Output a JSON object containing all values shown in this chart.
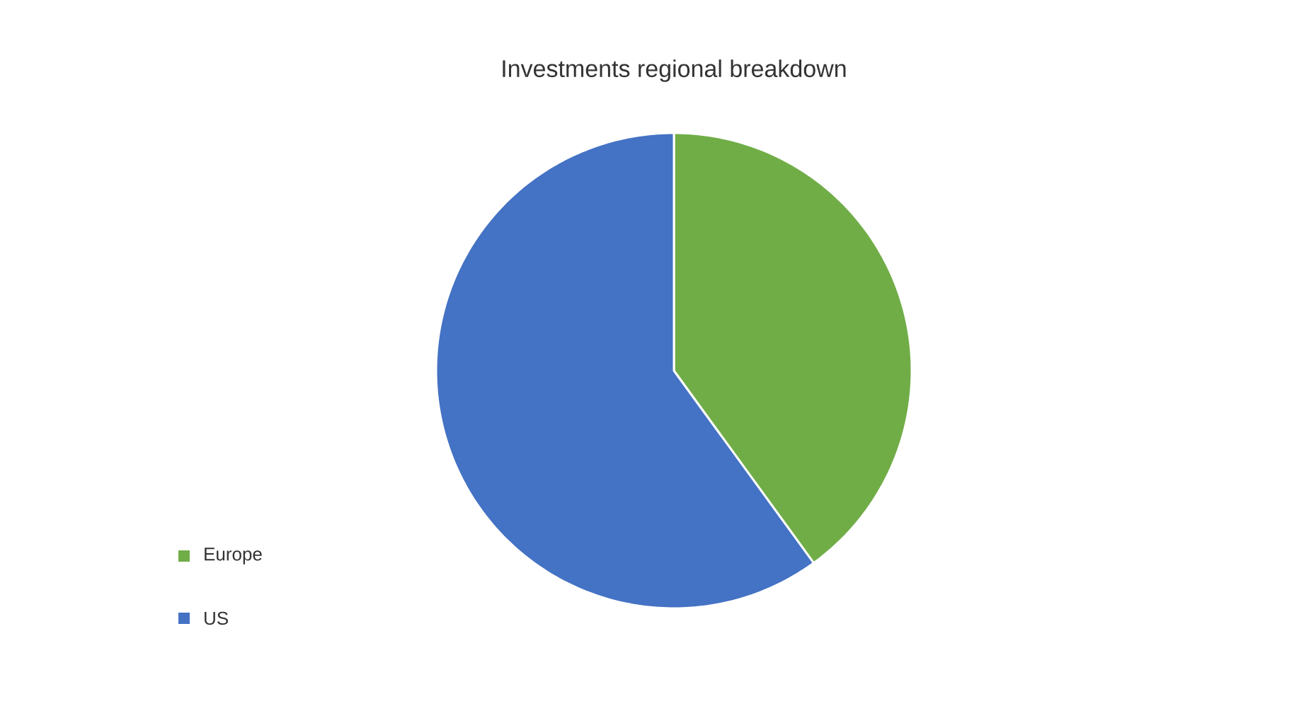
{
  "chart_data": {
    "type": "pie",
    "title": "Investments regional breakdown",
    "categories": [
      "Europe",
      "US"
    ],
    "values": [
      40,
      60
    ],
    "colors": [
      "#70ad47",
      "#4472c4"
    ],
    "legend": "bottom left"
  }
}
